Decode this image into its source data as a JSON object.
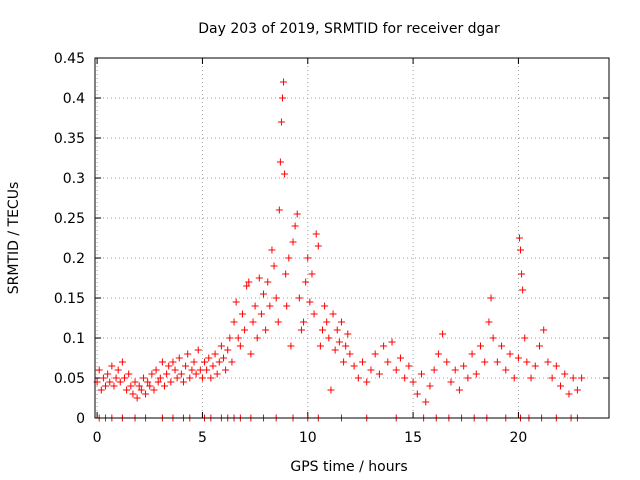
{
  "chart_data": {
    "type": "scatter",
    "title": "Day 203 of 2019, SRMTID for receiver dgar",
    "xlabel": "GPS time / hours",
    "ylabel": "SRMTID / TECUs",
    "xlim": [
      -0.1,
      24.3
    ],
    "ylim": [
      0,
      0.45
    ],
    "xticks": [
      0,
      5,
      10,
      15,
      20
    ],
    "xtick_labels": [
      "0",
      "5",
      "10",
      "15",
      "20"
    ],
    "yticks": [
      0,
      0.05,
      0.1,
      0.15,
      0.2,
      0.25,
      0.3,
      0.35,
      0.4,
      0.45
    ],
    "ytick_labels": [
      "0",
      "0.05",
      "0.1",
      "0.15",
      "0.2",
      "0.25",
      "0.3",
      "0.35",
      "0.4",
      "0.45"
    ],
    "grid": true,
    "marker": "+",
    "color": "#ff0000",
    "series": [
      {
        "name": "SRMTID",
        "points": [
          [
            0.0,
            0.045
          ],
          [
            0.1,
            0.06
          ],
          [
            0.2,
            0.035
          ],
          [
            0.3,
            0.05
          ],
          [
            0.4,
            0.04
          ],
          [
            0.5,
            0.055
          ],
          [
            0.6,
            0.045
          ],
          [
            0.7,
            0.065
          ],
          [
            0.8,
            0.04
          ],
          [
            0.9,
            0.05
          ],
          [
            1.0,
            0.06
          ],
          [
            1.1,
            0.045
          ],
          [
            1.2,
            0.07
          ],
          [
            1.3,
            0.05
          ],
          [
            1.4,
            0.035
          ],
          [
            1.5,
            0.055
          ],
          [
            1.6,
            0.04
          ],
          [
            1.7,
            0.03
          ],
          [
            1.8,
            0.045
          ],
          [
            1.9,
            0.025
          ],
          [
            2.0,
            0.04
          ],
          [
            2.1,
            0.035
          ],
          [
            2.2,
            0.05
          ],
          [
            2.3,
            0.03
          ],
          [
            2.4,
            0.045
          ],
          [
            2.5,
            0.04
          ],
          [
            2.6,
            0.055
          ],
          [
            2.7,
            0.035
          ],
          [
            2.8,
            0.06
          ],
          [
            2.9,
            0.045
          ],
          [
            3.0,
            0.05
          ],
          [
            3.1,
            0.07
          ],
          [
            3.2,
            0.04
          ],
          [
            3.3,
            0.055
          ],
          [
            3.4,
            0.065
          ],
          [
            3.5,
            0.045
          ],
          [
            3.6,
            0.07
          ],
          [
            3.7,
            0.06
          ],
          [
            3.8,
            0.05
          ],
          [
            3.9,
            0.075
          ],
          [
            4.0,
            0.055
          ],
          [
            4.1,
            0.045
          ],
          [
            4.2,
            0.065
          ],
          [
            4.3,
            0.08
          ],
          [
            4.4,
            0.05
          ],
          [
            4.5,
            0.06
          ],
          [
            4.6,
            0.07
          ],
          [
            4.7,
            0.055
          ],
          [
            4.8,
            0.085
          ],
          [
            4.9,
            0.06
          ],
          [
            5.0,
            0.05
          ],
          [
            5.1,
            0.07
          ],
          [
            5.2,
            0.06
          ],
          [
            5.3,
            0.075
          ],
          [
            5.4,
            0.05
          ],
          [
            5.5,
            0.065
          ],
          [
            5.6,
            0.08
          ],
          [
            5.7,
            0.055
          ],
          [
            5.8,
            0.07
          ],
          [
            5.9,
            0.09
          ],
          [
            6.0,
            0.075
          ],
          [
            6.1,
            0.06
          ],
          [
            6.2,
            0.085
          ],
          [
            6.3,
            0.1
          ],
          [
            6.4,
            0.07
          ],
          [
            6.5,
            0.12
          ],
          [
            6.6,
            0.145
          ],
          [
            6.7,
            0.1
          ],
          [
            6.8,
            0.09
          ],
          [
            6.9,
            0.13
          ],
          [
            7.0,
            0.11
          ],
          [
            7.1,
            0.165
          ],
          [
            7.2,
            0.17
          ],
          [
            7.3,
            0.08
          ],
          [
            7.4,
            0.12
          ],
          [
            7.5,
            0.14
          ],
          [
            7.6,
            0.1
          ],
          [
            7.7,
            0.175
          ],
          [
            7.8,
            0.13
          ],
          [
            7.9,
            0.155
          ],
          [
            8.0,
            0.11
          ],
          [
            8.1,
            0.17
          ],
          [
            8.2,
            0.14
          ],
          [
            8.3,
            0.21
          ],
          [
            8.4,
            0.19
          ],
          [
            8.5,
            0.15
          ],
          [
            8.6,
            0.12
          ],
          [
            8.65,
            0.26
          ],
          [
            8.7,
            0.32
          ],
          [
            8.75,
            0.37
          ],
          [
            8.8,
            0.4
          ],
          [
            8.85,
            0.42
          ],
          [
            8.9,
            0.305
          ],
          [
            8.95,
            0.18
          ],
          [
            9.0,
            0.14
          ],
          [
            9.1,
            0.2
          ],
          [
            9.2,
            0.09
          ],
          [
            9.3,
            0.22
          ],
          [
            9.4,
            0.24
          ],
          [
            9.5,
            0.255
          ],
          [
            9.6,
            0.15
          ],
          [
            9.7,
            0.11
          ],
          [
            9.8,
            0.12
          ],
          [
            9.9,
            0.17
          ],
          [
            10.0,
            0.2
          ],
          [
            10.1,
            0.145
          ],
          [
            10.2,
            0.18
          ],
          [
            10.3,
            0.13
          ],
          [
            10.4,
            0.23
          ],
          [
            10.5,
            0.215
          ],
          [
            10.6,
            0.09
          ],
          [
            10.7,
            0.11
          ],
          [
            10.8,
            0.14
          ],
          [
            10.9,
            0.12
          ],
          [
            11.0,
            0.1
          ],
          [
            11.1,
            0.035
          ],
          [
            11.2,
            0.13
          ],
          [
            11.3,
            0.085
          ],
          [
            11.4,
            0.11
          ],
          [
            11.5,
            0.095
          ],
          [
            11.6,
            0.12
          ],
          [
            11.7,
            0.07
          ],
          [
            11.8,
            0.09
          ],
          [
            11.9,
            0.105
          ],
          [
            12.0,
            0.08
          ],
          [
            12.2,
            0.065
          ],
          [
            12.4,
            0.05
          ],
          [
            12.6,
            0.07
          ],
          [
            12.8,
            0.045
          ],
          [
            13.0,
            0.06
          ],
          [
            13.2,
            0.08
          ],
          [
            13.4,
            0.055
          ],
          [
            13.6,
            0.09
          ],
          [
            13.8,
            0.07
          ],
          [
            14.0,
            0.095
          ],
          [
            14.2,
            0.06
          ],
          [
            14.4,
            0.075
          ],
          [
            14.6,
            0.05
          ],
          [
            14.8,
            0.065
          ],
          [
            15.0,
            0.045
          ],
          [
            15.2,
            0.03
          ],
          [
            15.4,
            0.055
          ],
          [
            15.6,
            0.02
          ],
          [
            15.8,
            0.04
          ],
          [
            16.0,
            0.06
          ],
          [
            16.2,
            0.08
          ],
          [
            16.4,
            0.105
          ],
          [
            16.6,
            0.07
          ],
          [
            16.8,
            0.045
          ],
          [
            17.0,
            0.06
          ],
          [
            17.2,
            0.035
          ],
          [
            17.4,
            0.065
          ],
          [
            17.6,
            0.05
          ],
          [
            17.8,
            0.08
          ],
          [
            18.0,
            0.055
          ],
          [
            18.2,
            0.09
          ],
          [
            18.4,
            0.07
          ],
          [
            18.6,
            0.12
          ],
          [
            18.7,
            0.15
          ],
          [
            18.8,
            0.1
          ],
          [
            19.0,
            0.07
          ],
          [
            19.2,
            0.09
          ],
          [
            19.4,
            0.06
          ],
          [
            19.6,
            0.08
          ],
          [
            19.8,
            0.05
          ],
          [
            20.0,
            0.075
          ],
          [
            20.05,
            0.225
          ],
          [
            20.1,
            0.21
          ],
          [
            20.15,
            0.18
          ],
          [
            20.2,
            0.16
          ],
          [
            20.3,
            0.1
          ],
          [
            20.4,
            0.07
          ],
          [
            20.6,
            0.05
          ],
          [
            20.8,
            0.065
          ],
          [
            21.0,
            0.09
          ],
          [
            21.2,
            0.11
          ],
          [
            21.4,
            0.07
          ],
          [
            21.6,
            0.05
          ],
          [
            21.8,
            0.065
          ],
          [
            22.0,
            0.04
          ],
          [
            22.2,
            0.055
          ],
          [
            22.4,
            0.03
          ],
          [
            22.6,
            0.05
          ],
          [
            22.8,
            0.035
          ],
          [
            23.0,
            0.05
          ]
        ]
      }
    ],
    "zero_points_x": [
      0.1,
      0.4,
      0.7,
      1.2,
      1.8,
      2.3,
      3.1,
      3.6,
      4.1,
      4.4,
      5.1,
      5.4,
      5.9,
      6.2,
      6.5,
      6.8,
      7.3,
      7.9,
      8.5,
      9.3,
      10.0,
      10.5,
      11.6,
      12.8,
      14.2,
      15.5,
      16.1,
      16.7,
      17.3,
      17.9,
      18.5,
      19.4,
      20.1,
      20.5,
      21.1,
      21.8,
      22.5,
      22.8
    ]
  }
}
